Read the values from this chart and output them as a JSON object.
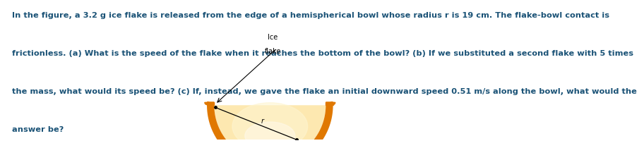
{
  "text_line1": "In the figure, a 3.2 g ice flake is released from the edge of a hemispherical bowl whose radius r is 19 cm. The flake-bowl contact is",
  "text_line2": "frictionless. (a) What is the speed of the flake when it reaches the bottom of the bowl? (b) If we substituted a second flake with 5 times",
  "text_line3": "the mass, what would its speed be? (c) If, instead, we gave the flake an initial downward speed 0.51 m/s along the bowl, what would the",
  "text_line4": "answer be?",
  "text_color": "#1a5276",
  "text_fontsize": 8.2,
  "label_ice": "Ice",
  "label_flake": "flake",
  "label_r": "r",
  "orange_dark": "#e07800",
  "orange_fill": "#fde8b0",
  "orange_glow": "#fef5d0",
  "base_color": "#c8a0a0",
  "fig_width": 7.16,
  "fig_height": 2.17
}
